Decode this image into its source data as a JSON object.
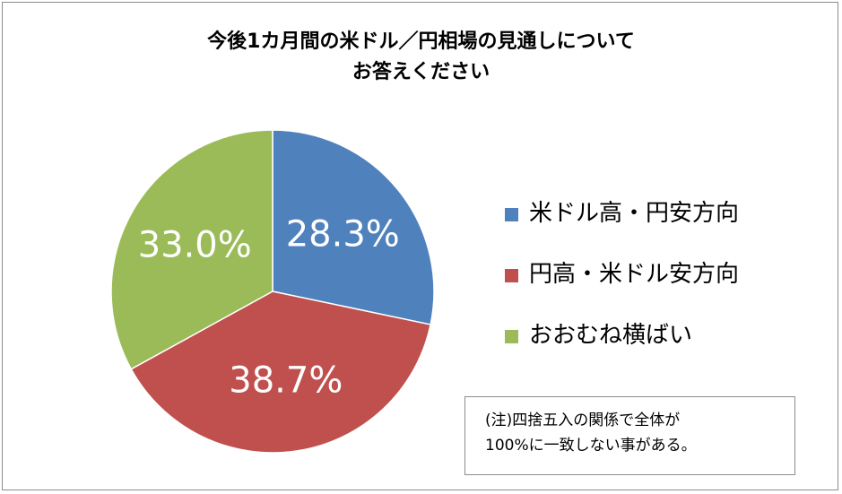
{
  "chart_data": {
    "type": "pie",
    "title": [
      "今後1カ月間の米ドル／円相場の見通しについて",
      "お答えください"
    ],
    "slices": [
      {
        "label": "米ドル高・円安方向",
        "value": 28.3,
        "display": "28.3%",
        "color": "#4f81bd"
      },
      {
        "label": "円高・米ドル安方向",
        "value": 38.7,
        "display": "38.7%",
        "color": "#c0504d"
      },
      {
        "label": "おおむね横ばい",
        "value": 33.0,
        "display": "33.0%",
        "color": "#9bbb59"
      }
    ],
    "start": "12 o'clock",
    "direction": "clockwise",
    "legend_position": "right",
    "note": [
      "(注)四捨五入の関係で全体が",
      "100%に一致しない事がある。"
    ]
  }
}
